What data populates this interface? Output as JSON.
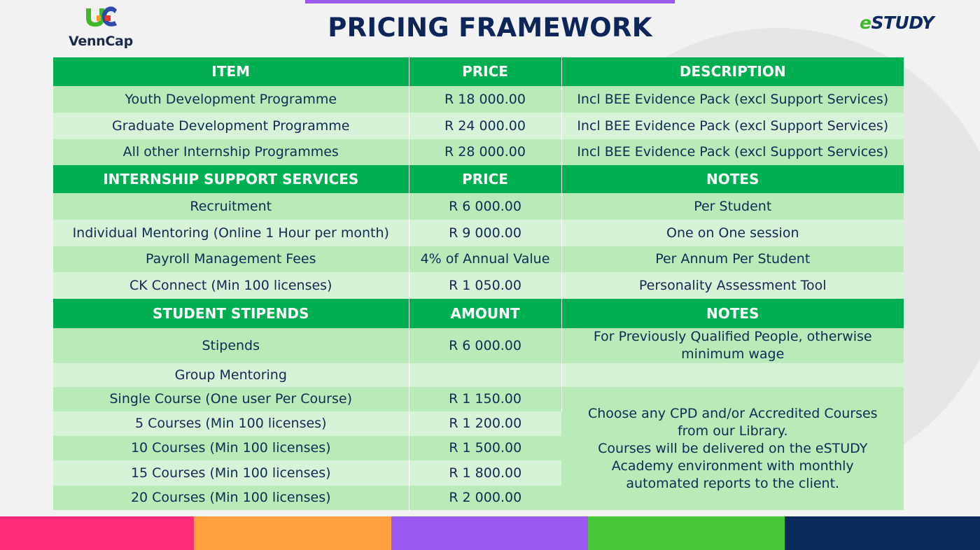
{
  "header": {
    "title": "PRICING FRAMEWORK",
    "logo_left": "VennCap",
    "logo_right_e": "e",
    "logo_right_rest": "STUDY"
  },
  "colors": {
    "header_green": "#00b050",
    "row_light": "#d7f3d7",
    "row_mid": "#b8ebb8",
    "title_navy": "#0d2558",
    "accent_purple": "#9b59f0",
    "bottom_bar": [
      "#ff2d78",
      "#ffa040",
      "#9b59f0",
      "#47c73a",
      "#0a2a5e"
    ]
  },
  "section1": {
    "headers": [
      "ITEM",
      "PRICE",
      "DESCRIPTION"
    ],
    "rows": [
      {
        "item": "Youth Development Programme",
        "price": "R 18 000.00",
        "desc": "Incl BEE Evidence Pack (excl Support Services)"
      },
      {
        "item": "Graduate Development Programme",
        "price": "R 24 000.00",
        "desc": "Incl BEE Evidence Pack (excl Support Services)"
      },
      {
        "item": "All other Internship Programmes",
        "price": "R 28 000.00",
        "desc": "Incl BEE Evidence Pack (excl Support Services)"
      }
    ]
  },
  "section2": {
    "headers": [
      "INTERNSHIP SUPPORT SERVICES",
      "PRICE",
      "NOTES"
    ],
    "rows": [
      {
        "item": "Recruitment",
        "price": "R 6 000.00",
        "note": "Per Student"
      },
      {
        "item": "Individual Mentoring (Online 1 Hour per month)",
        "price": "R 9 000.00",
        "note": "One on One session"
      },
      {
        "item": "Payroll Management Fees",
        "price": "4% of Annual Value",
        "note": "Per Annum Per Student"
      },
      {
        "item": "CK Connect (Min 100 licenses)",
        "price": "R 1 050.00",
        "note": "Personality Assessment Tool"
      }
    ]
  },
  "section3": {
    "headers": [
      "STUDENT STIPENDS",
      "AMOUNT",
      "NOTES"
    ],
    "stipends": {
      "item": "Stipends",
      "amount": "R 6 000.00",
      "note_line1": "For Previously Qualified People, otherwise",
      "note_line2": "minimum wage"
    },
    "group_mentoring": "Group Mentoring",
    "courses": [
      {
        "item": "Single Course (One user Per Course)",
        "amount": "R 1 150.00"
      },
      {
        "item": "5 Courses (Min 100 licenses)",
        "amount": "R 1 200.00"
      },
      {
        "item": "10 Courses (Min 100 licenses)",
        "amount": "R 1 500.00"
      },
      {
        "item": "15 Courses (Min 100 licenses)",
        "amount": "R 1 800.00"
      },
      {
        "item": "20 Courses (Min 100 licenses)",
        "amount": "R 2 000.00"
      }
    ],
    "courses_note": [
      "Choose any CPD and/or Accredited  Courses",
      "from our Library.",
      "Courses will be delivered on the eSTUDY",
      "Academy environment with monthly",
      "automated reports to the client."
    ]
  }
}
